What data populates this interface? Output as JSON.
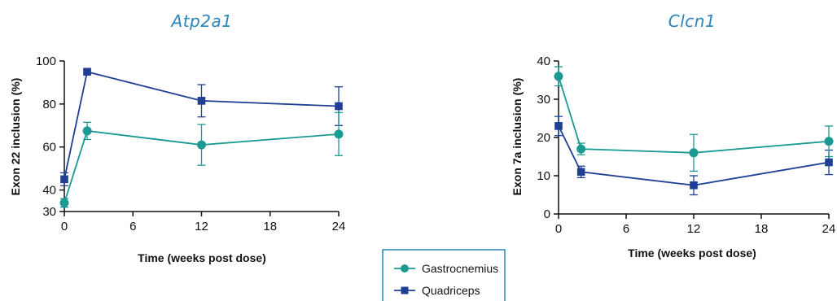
{
  "colors": {
    "gastrocnemius": "#1a9a93",
    "quadriceps": "#1f3f95",
    "legend_border": "#2a86b8",
    "title": "#2a86b8"
  },
  "legend": {
    "items": [
      "Gastrocnemius",
      "Quadriceps"
    ]
  },
  "chart_data": [
    {
      "type": "line",
      "title": "Atp2a1",
      "xlabel": "Time (weeks post dose)",
      "ylabel": "Exon 22 inclusion (%)",
      "xlim": [
        0,
        24
      ],
      "ylim": [
        30,
        100
      ],
      "xticks": [
        0,
        6,
        12,
        18,
        24
      ],
      "yticks": [
        30,
        40,
        60,
        80,
        100
      ],
      "series": [
        {
          "name": "Gastrocnemius",
          "x": [
            0,
            2,
            12,
            24
          ],
          "y": [
            34,
            67.5,
            61,
            66
          ],
          "err": [
            2,
            4,
            9.5,
            10
          ]
        },
        {
          "name": "Quadriceps",
          "x": [
            0,
            2,
            12,
            24
          ],
          "y": [
            45,
            95,
            81.5,
            79
          ],
          "err": [
            3,
            0.8,
            7.5,
            9
          ]
        }
      ]
    },
    {
      "type": "line",
      "title": "Clcn1",
      "xlabel": "Time (weeks post dose)",
      "ylabel": "Exon 7a inclusion (%)",
      "xlim": [
        0,
        24
      ],
      "ylim": [
        0,
        40
      ],
      "xticks": [
        0,
        6,
        12,
        18,
        24
      ],
      "yticks": [
        0,
        10,
        20,
        30,
        40
      ],
      "series": [
        {
          "name": "Gastrocnemius",
          "x": [
            0,
            2,
            12,
            24
          ],
          "y": [
            36,
            17,
            16,
            19
          ],
          "err": [
            2.5,
            1.5,
            4.8,
            4
          ]
        },
        {
          "name": "Quadriceps",
          "x": [
            0,
            2,
            12,
            24
          ],
          "y": [
            23,
            11,
            7.5,
            13.5
          ],
          "err": [
            2.5,
            1.5,
            2.5,
            3.2
          ]
        }
      ]
    }
  ]
}
